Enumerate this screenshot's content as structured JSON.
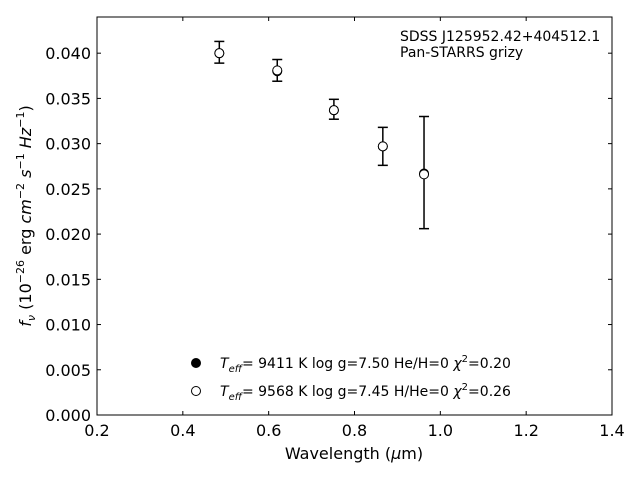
{
  "chart_data": {
    "type": "scatter",
    "xlabel": "Wavelength (μm)",
    "ylabel": "f_ν (10^-26 erg cm^-2 s^-1 Hz^-1)",
    "xlim": [
      0.2,
      1.4
    ],
    "ylim": [
      0.0,
      0.044
    ],
    "xticks": [
      0.2,
      0.4,
      0.6,
      0.8,
      1.0,
      1.2,
      1.4
    ],
    "xtick_labels": [
      "0.2",
      "0.4",
      "0.6",
      "0.8",
      "1.0",
      "1.2",
      "1.4"
    ],
    "yticks": [
      0.0,
      0.005,
      0.01,
      0.015,
      0.02,
      0.025,
      0.03,
      0.035,
      0.04
    ],
    "ytick_labels": [
      "0.000",
      "0.005",
      "0.010",
      "0.015",
      "0.020",
      "0.025",
      "0.030",
      "0.035",
      "0.040"
    ],
    "grid": false,
    "legend_placement": "lower-center",
    "annotations": [
      "SDSS J125952.42+404512.1",
      "Pan-STARRS grizy"
    ],
    "observed": {
      "x": [
        0.485,
        0.62,
        0.752,
        0.866,
        0.962
      ],
      "y": [
        0.0401,
        0.0381,
        0.0338,
        0.0297,
        0.0268
      ],
      "y_err": [
        0.0012,
        0.0012,
        0.0011,
        0.0021,
        0.0062
      ]
    },
    "series": [
      {
        "name": "T_eff=  9411 K  log g=7.50  He/H=0  χ²=0.20",
        "marker": "filled",
        "x": [
          0.485,
          0.62,
          0.752,
          0.866,
          0.962
        ],
        "y": [
          0.04,
          0.038,
          0.0337,
          0.0297,
          0.0267
        ]
      },
      {
        "name": "T_eff=  9568 K  log g=7.45  H/He=0  χ²=0.26",
        "marker": "open",
        "x": [
          0.485,
          0.62,
          0.752,
          0.866,
          0.962
        ],
        "y": [
          0.04,
          0.0381,
          0.0337,
          0.0297,
          0.0266
        ]
      }
    ],
    "legend": [
      {
        "marker": "filled",
        "teff": "9411",
        "logg": "7.50",
        "comp": "He/H=0",
        "chi2": "0.20"
      },
      {
        "marker": "open",
        "teff": "9568",
        "logg": "7.45",
        "comp": "H/He=0",
        "chi2": "0.26"
      }
    ],
    "colors": {
      "marker": "#000000",
      "axes": "#000000",
      "background": "#ffffff"
    }
  }
}
